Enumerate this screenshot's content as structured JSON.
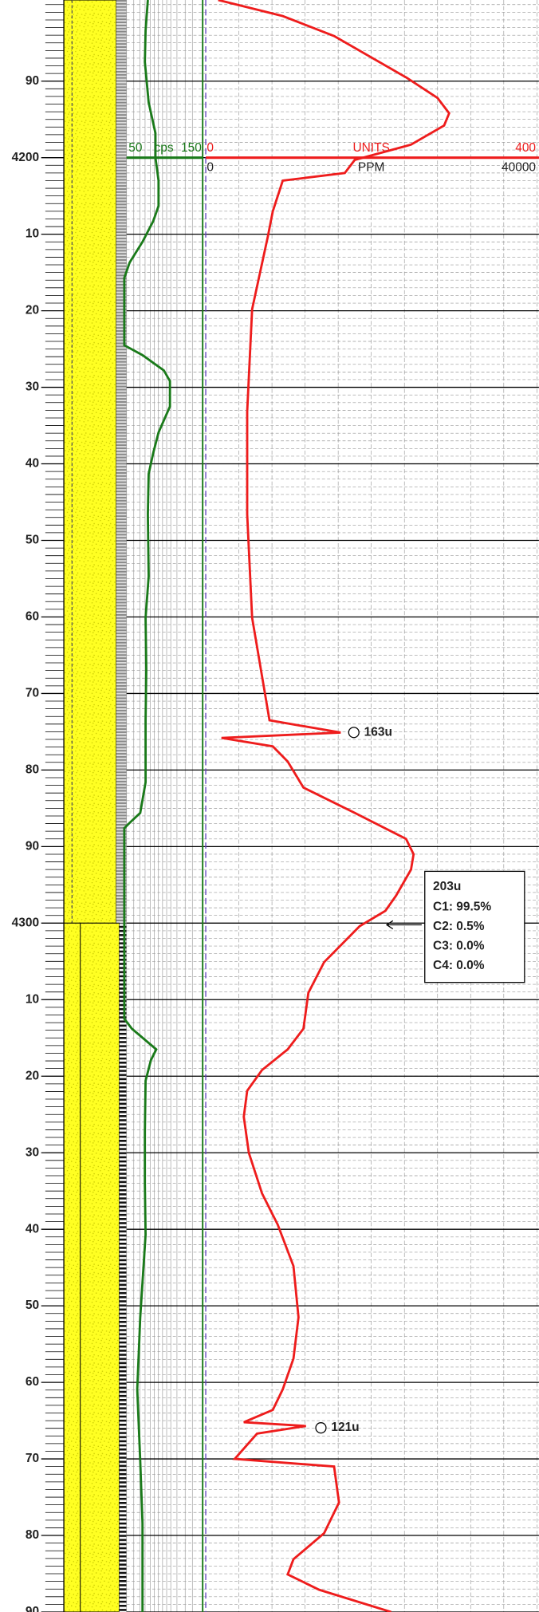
{
  "chart_data": {
    "type": "mudlog",
    "ylim": [
      4179.4,
      4390
    ],
    "yticks": [
      {
        "value": 4190,
        "label": "90"
      },
      4200,
      {
        "value": 4210,
        "label": "10"
      },
      {
        "value": 4220,
        "label": "20"
      },
      {
        "value": 4230,
        "label": "30"
      },
      {
        "value": 4240,
        "label": "40"
      },
      {
        "value": 4250,
        "label": "50"
      },
      {
        "value": 4260,
        "label": "60"
      },
      {
        "value": 4270,
        "label": "70"
      },
      {
        "value": 4280,
        "label": "80"
      },
      {
        "value": 4290,
        "label": "90"
      },
      4300,
      {
        "value": 4310,
        "label": "10"
      },
      {
        "value": 4320,
        "label": "20"
      },
      {
        "value": 4330,
        "label": "30"
      },
      {
        "value": 4340,
        "label": "40"
      },
      {
        "value": 4350,
        "label": "50"
      },
      {
        "value": 4360,
        "label": "60"
      },
      {
        "value": 4370,
        "label": "70"
      },
      {
        "value": 4380,
        "label": "80"
      },
      {
        "value": 4390,
        "label": "90"
      }
    ],
    "grid": true,
    "series": [
      {
        "name": "UNITS",
        "color": "#ee1c1c",
        "xlim": [
          0,
          400
        ],
        "x": [
          4179.4,
          4181.5,
          4184.1,
          4189.5,
          4192.2,
          4194.2,
          4195.8,
          4198.3,
          4200.3,
          4202.0,
          4203.0,
          4207.0,
          4210.3,
          4219.8,
          4233.2,
          4246.6,
          4260.1,
          4273.5,
          4275.1,
          4275.8,
          4276.9,
          4278.9,
          4282.3,
          4285.6,
          4289.0,
          4291.0,
          4293.0,
          4296.4,
          4298.4,
          4300.4,
          4305.1,
          4309.1,
          4313.8,
          4316.5,
          4319.2,
          4321.9,
          4325.3,
          4330.0,
          4335.3,
          4339.4,
          4344.8,
          4351.5,
          4356.9,
          4360.9,
          4363.6,
          4365.2,
          4365.7,
          4366.7,
          4370.0,
          4371.0,
          4375.7,
          4379.7,
          4383.1,
          4385.1,
          4387.1,
          4390
        ],
        "values": [
          15,
          93,
          155,
          242,
          280,
          294,
          288,
          248,
          180,
          168,
          93,
          81,
          75,
          56,
          50,
          50,
          56,
          77,
          163,
          19,
          81,
          99,
          118,
          180,
          242,
          251,
          248,
          230,
          217,
          186,
          143,
          124,
          118,
          99,
          68,
          50,
          46,
          52,
          68,
          87,
          106,
          112,
          106,
          93,
          81,
          46,
          121,
          62,
          35,
          155,
          161,
          143,
          106,
          99,
          137,
          224
        ]
      },
      {
        "name": "cps",
        "color": "#1a7a1a",
        "xlim": [
          50,
          150
        ],
        "x": [
          4179.4,
          4183.4,
          4187.5,
          4192.8,
          4196.8,
          4200,
          4203.0,
          4206.3,
          4208.3,
          4211.0,
          4213.7,
          4215.7,
          4219.8,
          4224.5,
          4225.8,
          4227.8,
          4229.2,
          4232.5,
          4235.9,
          4238.6,
          4241.3,
          4246.6,
          4254.7,
          4260.1,
          4266.8,
          4273.5,
          4281.6,
          4285.6,
          4286.9,
          4287.6,
          4297.7,
          4300.4,
          4312.5,
          4313.8,
          4316.5,
          4317.9,
          4320.6,
          4327.3,
          4334.0,
          4340.7,
          4351.5,
          4360.9,
          4370.3,
          4378.4,
          4390
        ],
        "values": [
          78,
          75,
          74,
          79,
          88,
          88,
          92,
          92,
          85,
          71,
          54,
          47,
          47,
          47,
          71,
          99,
          107,
          107,
          92,
          85,
          79,
          78,
          79,
          75,
          76,
          75,
          75,
          68,
          54,
          47,
          47,
          47,
          47,
          57,
          89,
          82,
          75,
          74,
          74,
          75,
          68,
          64,
          68,
          71,
          71
        ]
      }
    ],
    "ppm_axis": {
      "label": "PPM",
      "xlim": [
        0,
        40000
      ]
    },
    "annotations": [
      "163u",
      "121u"
    ],
    "gas_ratio_box": {
      "total": "203u",
      "lines": [
        "C1: 99.5%",
        "C2: 0.5%",
        "C3: 0.0%",
        "C4: 0.0%"
      ]
    }
  }
}
